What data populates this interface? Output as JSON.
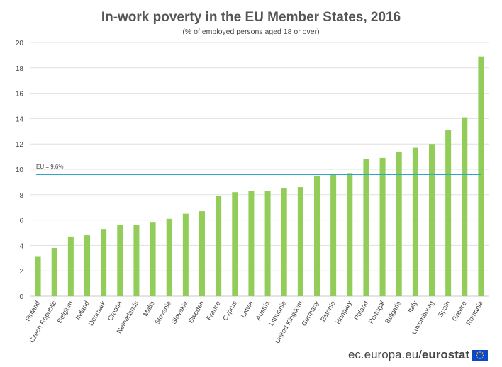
{
  "chart_data": {
    "type": "bar",
    "title": "In-work poverty in the EU Member States, 2016",
    "subtitle": "(% of employed persons aged 18 or over)",
    "categories": [
      "Finland",
      "Czech Republic",
      "Belgium",
      "Ireland",
      "Denmark",
      "Croatia",
      "Netherlands",
      "Malta",
      "Slovenia",
      "Slovakia",
      "Sweden",
      "France",
      "Cyprus",
      "Latvia",
      "Austria",
      "Lithuania",
      "United Kingdom",
      "Germany",
      "Estonia",
      "Hungary",
      "Poland",
      "Portugal",
      "Bulgaria",
      "Italy",
      "Luxembourg",
      "Spain",
      "Greece",
      "Romania"
    ],
    "values": [
      3.1,
      3.8,
      4.7,
      4.8,
      5.3,
      5.6,
      5.6,
      5.8,
      6.1,
      6.5,
      6.7,
      7.9,
      8.2,
      8.3,
      8.3,
      8.5,
      8.6,
      9.5,
      9.6,
      9.7,
      10.8,
      10.9,
      11.4,
      11.7,
      12.0,
      13.1,
      14.1,
      18.9
    ],
    "ylim": [
      0,
      20
    ],
    "yticks": [
      0,
      2,
      4,
      6,
      8,
      10,
      12,
      14,
      16,
      18,
      20
    ],
    "reference_line": {
      "label": "EU = 9.6%",
      "value": 9.6
    },
    "grid": true,
    "xlabel": "",
    "ylabel": "",
    "colors": {
      "bar": "#92cd5a",
      "reference": "#2fa4c9",
      "grid": "#e0e0e0",
      "axis": "#c8c8c8"
    }
  },
  "footer": {
    "site": "ec.europa.eu/",
    "brand": "eurostat"
  }
}
